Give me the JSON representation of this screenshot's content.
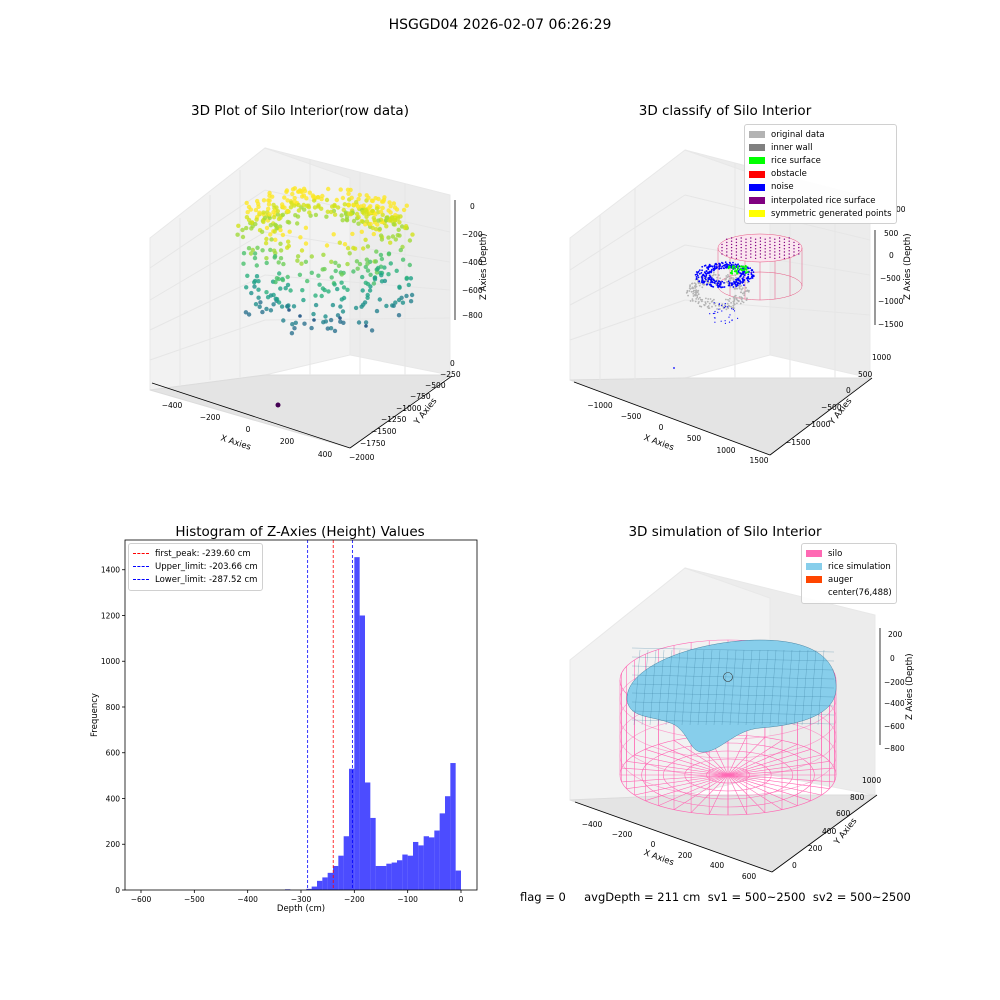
{
  "figure": {
    "suptitle": "HSGGD04 2026-02-07 06:26:29"
  },
  "chart_data": [
    {
      "type": "scatter",
      "projection": "3d",
      "title": "3D Plot of Silo Interior(row data)",
      "xlabel": "X Axies",
      "ylabel": "Y Axies",
      "zlabel": "Z Axies (Depth)",
      "xticks": [
        "−400",
        "−200",
        "0",
        "200",
        "400"
      ],
      "yticks": [
        "0",
        "−250",
        "−500",
        "−750",
        "−1000",
        "−1250",
        "−1500",
        "−1750",
        "−2000"
      ],
      "zticks": [
        "0",
        "−200",
        "−400",
        "−600",
        "−800"
      ],
      "xlim": [
        -450,
        450
      ],
      "ylim": [
        -2000,
        0
      ],
      "zlim": [
        -900,
        0
      ],
      "colormap": "viridis"
    },
    {
      "type": "scatter",
      "projection": "3d",
      "title": "3D classify of Silo Interior",
      "xlabel": "X Axies",
      "ylabel": "Y Axies",
      "zlabel": "Z Axies (Depth)",
      "xticks": [
        "−1000",
        "−500",
        "0",
        "500",
        "1000",
        "1500"
      ],
      "yticks": [
        "1000",
        "500",
        "0",
        "−500",
        "−1000",
        "−1500"
      ],
      "zticks": [
        "500",
        "0",
        "−500",
        "−1000",
        "−1500"
      ],
      "legend": [
        {
          "label": "original data",
          "color": "#b3b3b3"
        },
        {
          "label": "inner wall",
          "color": "#808080"
        },
        {
          "label": "rice surface",
          "color": "#00ff00"
        },
        {
          "label": "obstacle",
          "color": "#ff0000"
        },
        {
          "label": "noise",
          "color": "#0000ff"
        },
        {
          "label": "interpolated rice surface",
          "color": "#800080"
        },
        {
          "label": "symmetric generated points",
          "color": "#ffff00"
        }
      ],
      "legend_loc": "upper right",
      "partial_tick": "00"
    },
    {
      "type": "bar",
      "title": "Histogram of Z-Axies (Height) Values",
      "xlabel": "Depth (cm)",
      "ylabel": "Frequency",
      "xlim": [
        -630,
        30
      ],
      "ylim": [
        0,
        1530
      ],
      "xticks": [
        -600,
        -500,
        -400,
        -300,
        -200,
        -100,
        0
      ],
      "xtick_labels": [
        "−600",
        "−500",
        "−400",
        "−300",
        "−200",
        "−100",
        "0"
      ],
      "yticks": [
        0,
        200,
        400,
        600,
        800,
        1000,
        1200,
        1400
      ],
      "bin_width": 10,
      "bins": [
        [
          -610,
          0
        ],
        [
          -600,
          0
        ],
        [
          -590,
          0
        ],
        [
          -580,
          0
        ],
        [
          -570,
          0
        ],
        [
          -560,
          0
        ],
        [
          -550,
          0
        ],
        [
          -540,
          0
        ],
        [
          -530,
          0
        ],
        [
          -520,
          0
        ],
        [
          -510,
          0
        ],
        [
          -500,
          0
        ],
        [
          -490,
          0
        ],
        [
          -480,
          0
        ],
        [
          -470,
          0
        ],
        [
          -460,
          0
        ],
        [
          -450,
          0
        ],
        [
          -440,
          0
        ],
        [
          -430,
          0
        ],
        [
          -420,
          0
        ],
        [
          -410,
          0
        ],
        [
          -400,
          0
        ],
        [
          -390,
          3
        ],
        [
          -380,
          0
        ],
        [
          -370,
          0
        ],
        [
          -360,
          0
        ],
        [
          -350,
          5
        ],
        [
          -340,
          15
        ],
        [
          -330,
          40
        ],
        [
          -320,
          55
        ],
        [
          -310,
          75
        ],
        [
          -300,
          105
        ],
        [
          -290,
          150
        ],
        [
          -280,
          235
        ],
        [
          -270,
          530
        ],
        [
          -260,
          1455
        ],
        [
          -250,
          1200
        ],
        [
          -240,
          470
        ],
        [
          -230,
          315
        ],
        [
          -220,
          105
        ],
        [
          -210,
          105
        ],
        [
          -200,
          115
        ],
        [
          -190,
          120
        ],
        [
          -180,
          130
        ],
        [
          -170,
          155
        ],
        [
          -160,
          150
        ],
        [
          -150,
          210
        ],
        [
          -140,
          195
        ],
        [
          -130,
          235
        ],
        [
          -120,
          230
        ],
        [
          -110,
          260
        ],
        [
          -100,
          335
        ],
        [
          -90,
          410
        ],
        [
          -80,
          555
        ],
        [
          -70,
          85
        ]
      ],
      "bin_note": "bins listed as [left_edge, count] with offset applied: actual left edge = value + 60",
      "bar_color": "#0000ff",
      "vlines": [
        {
          "x": -239.6,
          "color": "#ff0000",
          "label": "first_peak: -239.60 cm"
        },
        {
          "x": -203.66,
          "color": "#0000ff",
          "label": "Upper_limit: -203.66 cm"
        },
        {
          "x": -287.52,
          "color": "#0000ff",
          "label": "Lower_limit: -287.52 cm"
        }
      ],
      "legend_loc": "upper left"
    },
    {
      "type": "surface",
      "projection": "3d",
      "title": "3D simulation of Silo Interior",
      "xlabel": "X Axies",
      "ylabel": "Y Axies",
      "zlabel": "Z Axies (Depth)",
      "xticks": [
        "−400",
        "−200",
        "0",
        "200",
        "400",
        "600"
      ],
      "yticks": [
        "0",
        "200",
        "400",
        "600",
        "800",
        "1000"
      ],
      "zticks": [
        "200",
        "0",
        "−200",
        "−400",
        "−600",
        "−800"
      ],
      "legend": [
        {
          "label": "silo",
          "color": "#ff69b4"
        },
        {
          "label": "rice simulation",
          "color": "#87ceeb"
        },
        {
          "label": "auger",
          "color": "#ff4500"
        },
        {
          "label": "center(76,488)",
          "color": ""
        }
      ],
      "legend_loc": "upper right"
    }
  ],
  "status": {
    "text": "flag = 0     avgDepth = 211 cm  sv1 = 500~2500  sv2 = 500~2500"
  }
}
